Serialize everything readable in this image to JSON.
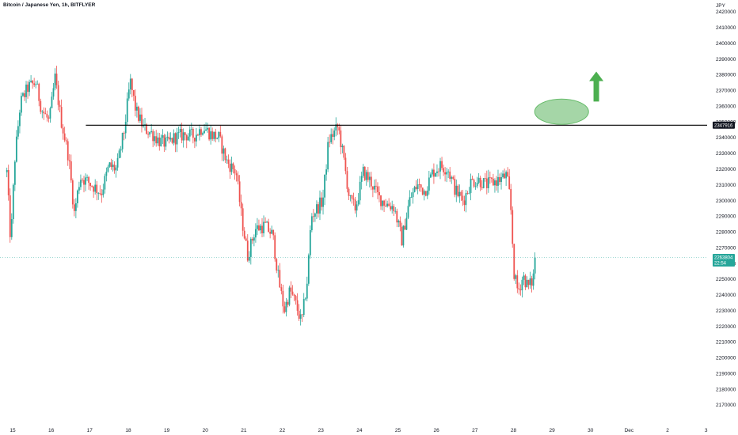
{
  "chart_data": {
    "type": "candlestick",
    "title": "Bitcoin / Japanese Yen, 1h, BITFLYER",
    "y_unit_label": "JPY",
    "ylim": [
      2168000,
      2428000
    ],
    "yticks": [
      2170000,
      2180000,
      2190000,
      2200000,
      2210000,
      2220000,
      2230000,
      2240000,
      2250000,
      2260000,
      2270000,
      2280000,
      2290000,
      2300000,
      2310000,
      2320000,
      2330000,
      2340000,
      2350000,
      2360000,
      2370000,
      2380000,
      2390000,
      2400000,
      2410000,
      2420000
    ],
    "xticks": [
      "15",
      "16",
      "17",
      "18",
      "19",
      "20",
      "21",
      "22",
      "23",
      "24",
      "25",
      "26",
      "27",
      "28",
      "29",
      "30",
      "Dec",
      "2",
      "3"
    ],
    "xlim_days": [
      14.85,
      33.25
    ],
    "bull_color": "#26a69a",
    "bear_color": "#ef5350",
    "price_keypoints": [
      {
        "day": 14.85,
        "price": 2318000
      },
      {
        "day": 14.95,
        "price": 2272000
      },
      {
        "day": 15.05,
        "price": 2325000
      },
      {
        "day": 15.2,
        "price": 2362000
      },
      {
        "day": 15.4,
        "price": 2372000
      },
      {
        "day": 15.6,
        "price": 2375000
      },
      {
        "day": 15.75,
        "price": 2358000
      },
      {
        "day": 15.95,
        "price": 2350000
      },
      {
        "day": 16.1,
        "price": 2378000
      },
      {
        "day": 16.25,
        "price": 2352000
      },
      {
        "day": 16.45,
        "price": 2328000
      },
      {
        "day": 16.6,
        "price": 2292000
      },
      {
        "day": 16.75,
        "price": 2315000
      },
      {
        "day": 16.95,
        "price": 2312000
      },
      {
        "day": 17.15,
        "price": 2308000
      },
      {
        "day": 17.3,
        "price": 2305000
      },
      {
        "day": 17.5,
        "price": 2322000
      },
      {
        "day": 17.7,
        "price": 2320000
      },
      {
        "day": 17.9,
        "price": 2345000
      },
      {
        "day": 18.05,
        "price": 2376000
      },
      {
        "day": 18.2,
        "price": 2357000
      },
      {
        "day": 18.4,
        "price": 2346000
      },
      {
        "day": 18.6,
        "price": 2343000
      },
      {
        "day": 18.8,
        "price": 2338000
      },
      {
        "day": 19.0,
        "price": 2336000
      },
      {
        "day": 19.2,
        "price": 2340000
      },
      {
        "day": 19.45,
        "price": 2342000
      },
      {
        "day": 19.7,
        "price": 2341000
      },
      {
        "day": 19.95,
        "price": 2347000
      },
      {
        "day": 20.15,
        "price": 2342000
      },
      {
        "day": 20.35,
        "price": 2340000
      },
      {
        "day": 20.55,
        "price": 2325000
      },
      {
        "day": 20.8,
        "price": 2318000
      },
      {
        "day": 20.95,
        "price": 2288000
      },
      {
        "day": 21.1,
        "price": 2265000
      },
      {
        "day": 21.3,
        "price": 2282000
      },
      {
        "day": 21.55,
        "price": 2284000
      },
      {
        "day": 21.75,
        "price": 2278000
      },
      {
        "day": 21.9,
        "price": 2250000
      },
      {
        "day": 22.05,
        "price": 2230000
      },
      {
        "day": 22.2,
        "price": 2243000
      },
      {
        "day": 22.35,
        "price": 2234000
      },
      {
        "day": 22.5,
        "price": 2222000
      },
      {
        "day": 22.65,
        "price": 2250000
      },
      {
        "day": 22.75,
        "price": 2290000
      },
      {
        "day": 22.9,
        "price": 2295000
      },
      {
        "day": 23.05,
        "price": 2300000
      },
      {
        "day": 23.2,
        "price": 2338000
      },
      {
        "day": 23.45,
        "price": 2347000
      },
      {
        "day": 23.6,
        "price": 2325000
      },
      {
        "day": 23.75,
        "price": 2300000
      },
      {
        "day": 23.9,
        "price": 2295000
      },
      {
        "day": 24.1,
        "price": 2318000
      },
      {
        "day": 24.3,
        "price": 2312000
      },
      {
        "day": 24.5,
        "price": 2302000
      },
      {
        "day": 24.7,
        "price": 2298000
      },
      {
        "day": 24.9,
        "price": 2296000
      },
      {
        "day": 25.1,
        "price": 2275000
      },
      {
        "day": 25.3,
        "price": 2300000
      },
      {
        "day": 25.5,
        "price": 2310000
      },
      {
        "day": 25.7,
        "price": 2306000
      },
      {
        "day": 25.9,
        "price": 2318000
      },
      {
        "day": 26.1,
        "price": 2322000
      },
      {
        "day": 26.3,
        "price": 2320000
      },
      {
        "day": 26.5,
        "price": 2306000
      },
      {
        "day": 26.7,
        "price": 2300000
      },
      {
        "day": 26.9,
        "price": 2312000
      },
      {
        "day": 27.1,
        "price": 2313000
      },
      {
        "day": 27.3,
        "price": 2310000
      },
      {
        "day": 27.5,
        "price": 2312000
      },
      {
        "day": 27.7,
        "price": 2314000
      },
      {
        "day": 27.82,
        "price": 2316000
      },
      {
        "day": 27.92,
        "price": 2300000
      },
      {
        "day": 28.02,
        "price": 2252000
      },
      {
        "day": 28.12,
        "price": 2242000
      },
      {
        "day": 28.25,
        "price": 2252000
      },
      {
        "day": 28.38,
        "price": 2245000
      },
      {
        "day": 28.5,
        "price": 2249000
      },
      {
        "day": 28.58,
        "price": 2263804
      }
    ],
    "resistance_line": {
      "price": 2347916,
      "label": "2347916",
      "from_day": 16.9
    },
    "current_price": {
      "price": 2263804,
      "label": "2263804",
      "countdown": "22:54"
    },
    "target_ellipse": {
      "day": 29.25,
      "price": 2356500
    },
    "up_arrow": {
      "day": 30.15,
      "price_from": 2363000,
      "price_to": 2380000,
      "color": "#4caf50"
    }
  }
}
